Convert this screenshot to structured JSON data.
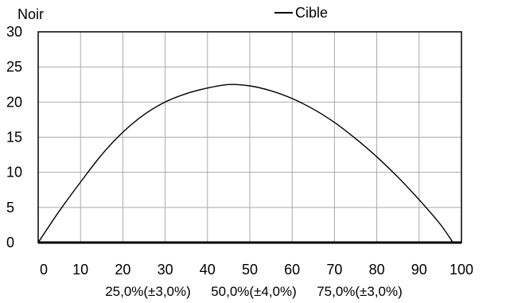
{
  "chart_data": {
    "type": "line",
    "title": "",
    "ylabel": "Noir",
    "xlabel": "",
    "xlim": [
      0,
      100
    ],
    "ylim": [
      0,
      30
    ],
    "x_ticks": [
      0,
      10,
      20,
      30,
      40,
      50,
      60,
      70,
      80,
      90,
      100
    ],
    "y_ticks": [
      0,
      5,
      10,
      15,
      20,
      25,
      30
    ],
    "grid": true,
    "legend_position": "top-right",
    "secondary_labels": [
      {
        "x": 25,
        "text": "25,0%(±3,0%)"
      },
      {
        "x": 50,
        "text": "50,0%(±4,0%)"
      },
      {
        "x": 75,
        "text": "75,0%(±3,0%)"
      }
    ],
    "series": [
      {
        "name": "Cible",
        "color": "#000000",
        "points": [
          [
            0,
            0
          ],
          [
            5,
            4.5
          ],
          [
            10,
            8.6
          ],
          [
            15,
            12.5
          ],
          [
            20,
            15.7
          ],
          [
            25,
            18.2
          ],
          [
            30,
            20.0
          ],
          [
            35,
            21.2
          ],
          [
            40,
            22.0
          ],
          [
            45,
            22.5
          ],
          [
            50,
            22.3
          ],
          [
            55,
            21.6
          ],
          [
            60,
            20.5
          ],
          [
            65,
            19.0
          ],
          [
            70,
            17.1
          ],
          [
            75,
            14.8
          ],
          [
            80,
            12.2
          ],
          [
            85,
            9.3
          ],
          [
            90,
            6.1
          ],
          [
            95,
            2.6
          ],
          [
            98,
            0
          ]
        ]
      }
    ]
  }
}
